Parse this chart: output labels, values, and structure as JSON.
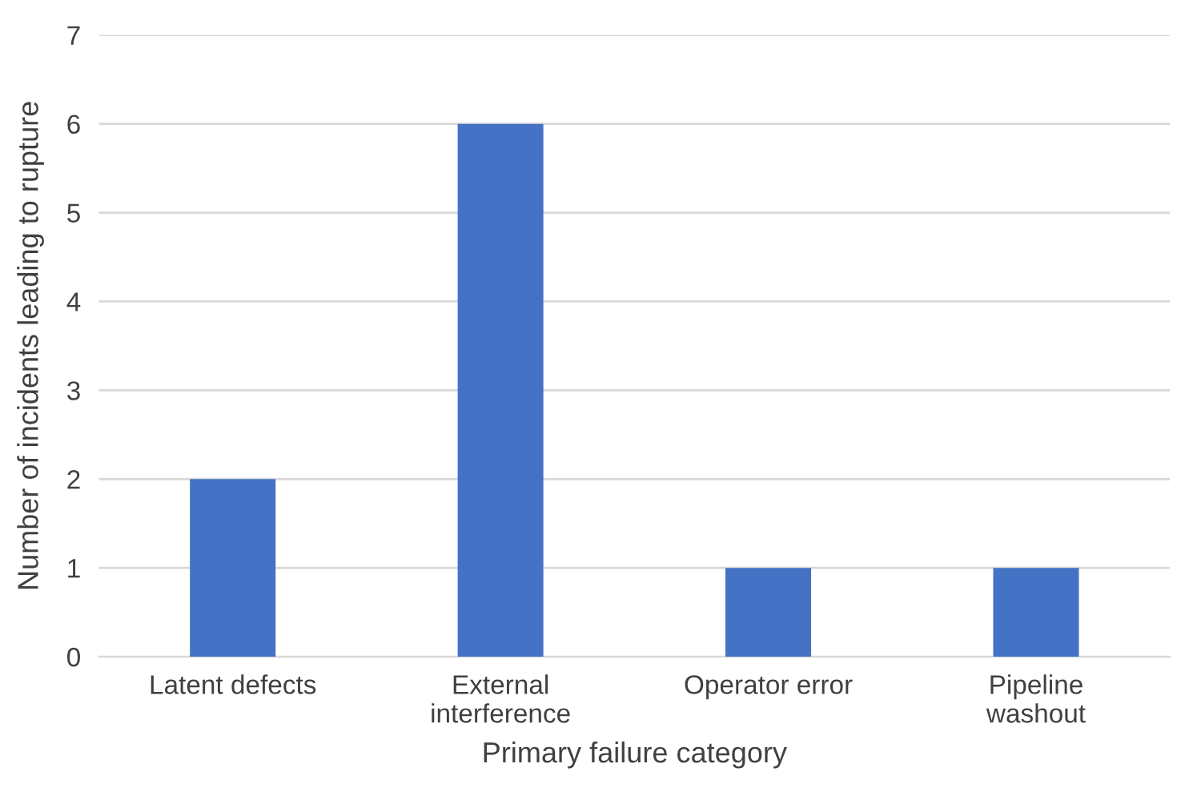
{
  "chart_data": {
    "type": "bar",
    "xlabel": "Primary failure category",
    "ylabel": "Number of incidents leading to rupture",
    "categories": [
      "Latent defects",
      "External interference",
      "Operator error",
      "Pipeline washout"
    ],
    "values": [
      2,
      6,
      1,
      1
    ],
    "color": "#4472c4",
    "ylim": [
      0,
      7
    ],
    "yticks": [
      0,
      1,
      2,
      3,
      4,
      5,
      6,
      7
    ],
    "grid": "y",
    "legend": false
  }
}
